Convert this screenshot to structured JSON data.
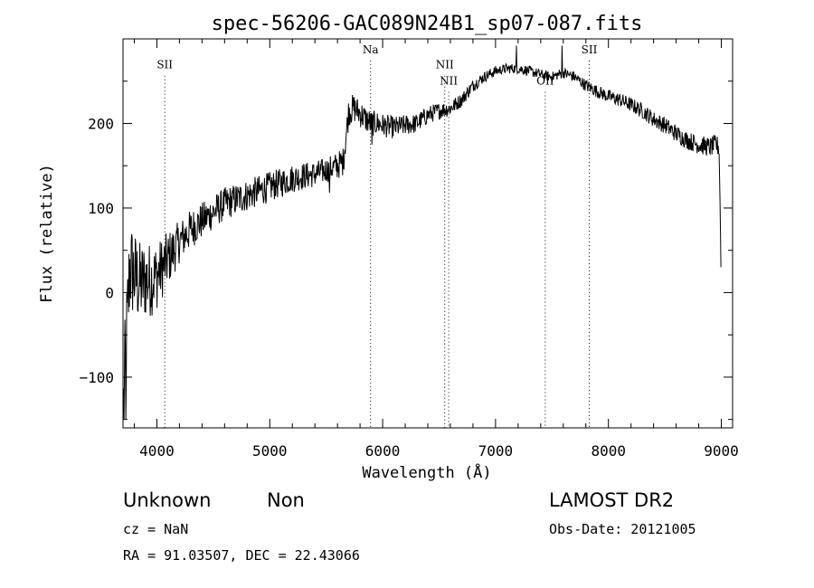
{
  "chart_data": {
    "type": "line",
    "title": "spec-56206-GAC089N24B1_sp07-087.fits",
    "xlabel": "Wavelength (Å)",
    "ylabel": "Flux (relative)",
    "xlim": [
      3700,
      9100
    ],
    "ylim": [
      -160,
      300
    ],
    "xticks": [
      4000,
      5000,
      6000,
      7000,
      8000,
      9000
    ],
    "yticks": [
      -100,
      0,
      100,
      200
    ],
    "grid": false,
    "legend": "none",
    "line_color": "#000000",
    "lines": [
      {
        "label": "SII",
        "x": 4070,
        "y_label": 265
      },
      {
        "label": "Na",
        "x": 5893,
        "y_label": 283
      },
      {
        "label": "NII",
        "x": 6550,
        "y_label": 265
      },
      {
        "label": "NII",
        "x": 6585,
        "y_label": 246
      },
      {
        "label": "OII",
        "x": 7440,
        "y_label": 246
      },
      {
        "label": "SII",
        "x": 7830,
        "y_label": 283
      }
    ],
    "spectrum_knots": [
      [
        3700,
        -150
      ],
      [
        3730,
        -60
      ],
      [
        3760,
        30
      ],
      [
        3800,
        20
      ],
      [
        3850,
        10
      ],
      [
        3900,
        15
      ],
      [
        3950,
        15
      ],
      [
        4000,
        20
      ],
      [
        4050,
        30
      ],
      [
        4100,
        40
      ],
      [
        4150,
        50
      ],
      [
        4200,
        60
      ],
      [
        4300,
        75
      ],
      [
        4400,
        85
      ],
      [
        4500,
        95
      ],
      [
        4600,
        105
      ],
      [
        4700,
        110
      ],
      [
        4800,
        115
      ],
      [
        4900,
        120
      ],
      [
        5000,
        125
      ],
      [
        5100,
        130
      ],
      [
        5200,
        135
      ],
      [
        5300,
        138
      ],
      [
        5400,
        140
      ],
      [
        5500,
        145
      ],
      [
        5600,
        150
      ],
      [
        5650,
        155
      ],
      [
        5700,
        215
      ],
      [
        5750,
        218
      ],
      [
        5800,
        212
      ],
      [
        5850,
        205
      ],
      [
        5900,
        200
      ],
      [
        5950,
        200
      ],
      [
        6000,
        198
      ],
      [
        6100,
        195
      ],
      [
        6200,
        198
      ],
      [
        6300,
        200
      ],
      [
        6400,
        210
      ],
      [
        6500,
        215
      ],
      [
        6600,
        218
      ],
      [
        6700,
        228
      ],
      [
        6800,
        245
      ],
      [
        6900,
        255
      ],
      [
        7000,
        262
      ],
      [
        7100,
        265
      ],
      [
        7200,
        265
      ],
      [
        7300,
        262
      ],
      [
        7400,
        258
      ],
      [
        7500,
        255
      ],
      [
        7600,
        260
      ],
      [
        7700,
        255
      ],
      [
        7800,
        245
      ],
      [
        7900,
        238
      ],
      [
        8000,
        232
      ],
      [
        8100,
        228
      ],
      [
        8200,
        222
      ],
      [
        8300,
        215
      ],
      [
        8400,
        205
      ],
      [
        8500,
        198
      ],
      [
        8600,
        188
      ],
      [
        8700,
        180
      ],
      [
        8800,
        175
      ],
      [
        8900,
        172
      ],
      [
        8950,
        175
      ],
      [
        8980,
        172
      ],
      [
        8990,
        100
      ],
      [
        9000,
        0
      ]
    ],
    "noise_amplitude_knots": [
      [
        3700,
        70
      ],
      [
        3800,
        55
      ],
      [
        4000,
        40
      ],
      [
        4200,
        25
      ],
      [
        4500,
        20
      ],
      [
        5000,
        18
      ],
      [
        5500,
        15
      ],
      [
        5700,
        18
      ],
      [
        6000,
        14
      ],
      [
        6500,
        10
      ],
      [
        7000,
        6
      ],
      [
        7500,
        6
      ],
      [
        8000,
        8
      ],
      [
        8500,
        10
      ],
      [
        9000,
        12
      ]
    ],
    "spikes": [
      [
        7185,
        292
      ],
      [
        7590,
        292
      ],
      [
        5905,
        175
      ],
      [
        5530,
        118
      ],
      [
        3725,
        -150
      ]
    ]
  },
  "footer": {
    "object_class": "Unknown",
    "subclass": "Non",
    "survey": "LAMOST DR2",
    "redshift": "cz = NaN",
    "obs_date": "Obs-Date: 20121005",
    "coords": "RA =  91.03507, DEC =  22.43066"
  }
}
